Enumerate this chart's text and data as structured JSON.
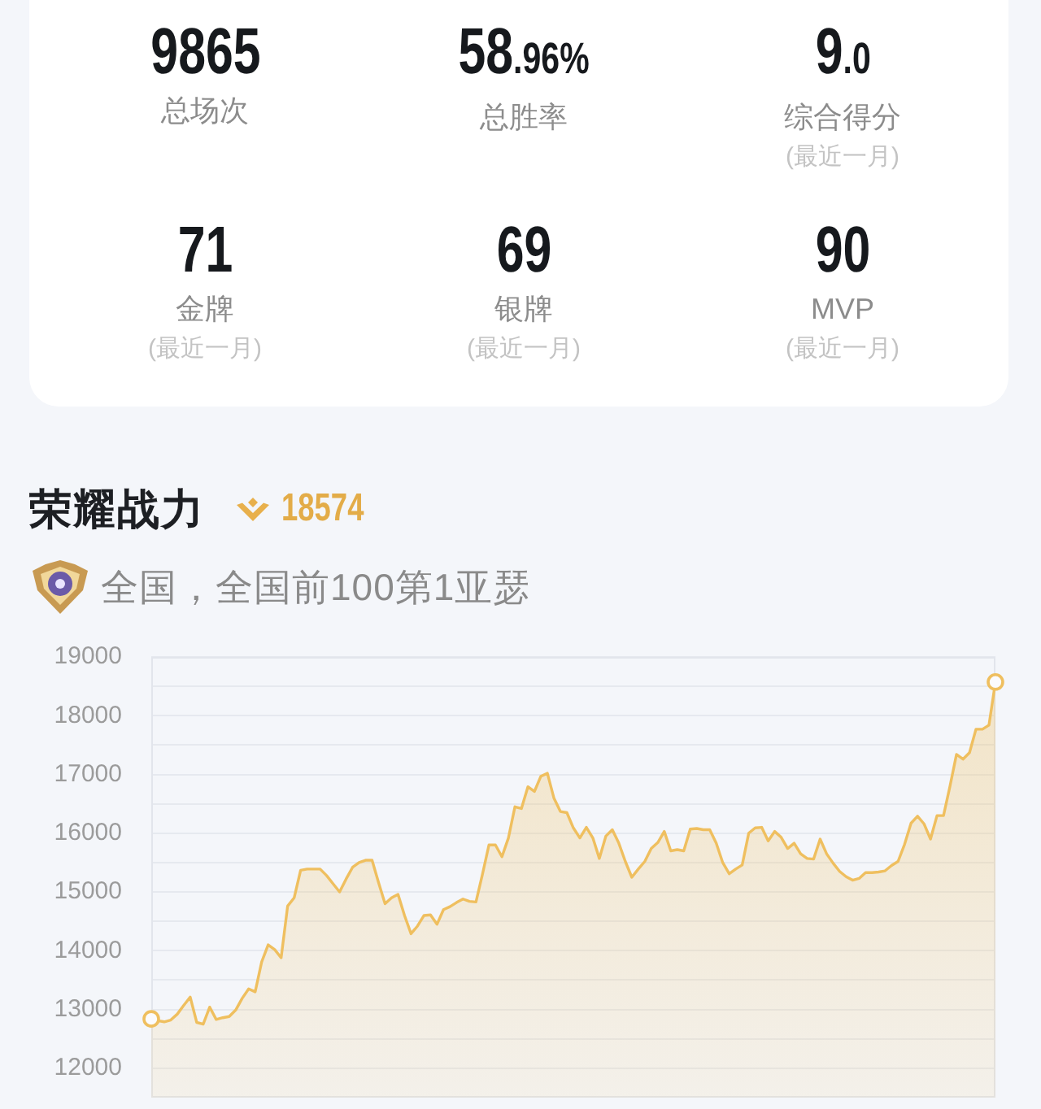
{
  "chart_data": [
    {
      "type": "other",
      "categories": [
        "总场次",
        "总胜率",
        "综合得分",
        "金牌",
        "银牌",
        "MVP"
      ],
      "value_labels": [
        "9865",
        "58.96%",
        "9.0",
        "71",
        "69",
        "90"
      ],
      "annotations": [
        {
          "text": "(最近一月)",
          "x": "综合得分"
        },
        {
          "text": "(最近一月)",
          "x": "金牌"
        },
        {
          "text": "(最近一月)",
          "x": "银牌"
        },
        {
          "text": "(最近一月)",
          "x": "MVP"
        }
      ]
    },
    {
      "type": "area",
      "title": "荣耀战力",
      "subtitle": "全国，全国前100第1亚瑟",
      "annotations": [
        "18574"
      ],
      "categories": [
        null,
        null,
        null,
        null,
        null,
        null,
        null,
        null,
        null,
        null,
        null,
        null,
        null,
        null,
        null,
        null,
        null,
        null,
        null,
        null,
        null,
        null,
        null,
        null,
        null,
        null,
        null,
        null,
        null,
        null,
        null,
        null,
        null,
        null,
        null,
        null,
        null,
        null,
        null,
        null,
        null,
        null,
        null,
        null,
        null,
        null,
        null,
        null,
        null,
        null,
        null,
        null,
        null,
        null,
        null,
        null,
        null,
        null,
        null,
        null,
        null,
        null,
        null,
        null,
        null,
        null,
        null,
        null,
        null,
        null,
        null,
        null,
        null,
        null,
        null,
        null,
        null,
        null,
        null,
        null,
        null,
        null,
        null,
        null,
        null,
        null,
        null,
        null,
        null,
        null,
        null,
        null,
        null,
        null,
        null,
        null,
        null,
        null,
        null,
        null,
        null,
        null,
        null,
        null,
        null,
        null,
        null,
        null,
        null,
        null,
        null,
        null,
        null,
        null,
        null,
        null,
        null,
        null,
        null,
        null,
        null,
        null,
        null,
        null,
        null,
        null,
        null,
        null,
        null,
        null,
        null
      ],
      "series": [
        {
          "color": "#efbf5f",
          "values": [
            12840,
            12810,
            12790,
            12820,
            12920,
            13070,
            13210,
            12780,
            12750,
            13040,
            12830,
            12860,
            12880,
            12990,
            13190,
            13350,
            13300,
            13810,
            14100,
            14020,
            13880,
            14760,
            14900,
            15370,
            15390,
            15390,
            15390,
            15280,
            15140,
            15000,
            15220,
            15420,
            15500,
            15540,
            15540,
            15160,
            14800,
            14900,
            14960,
            14600,
            14290,
            14420,
            14600,
            14610,
            14450,
            14700,
            14750,
            14820,
            14880,
            14840,
            14830,
            15300,
            15800,
            15800,
            15600,
            15920,
            16450,
            16420,
            16790,
            16710,
            16970,
            17020,
            16600,
            16370,
            16350,
            16090,
            15920,
            16100,
            15920,
            15570,
            15950,
            16060,
            15830,
            15520,
            15250,
            15390,
            15520,
            15740,
            15840,
            16030,
            15700,
            15720,
            15700,
            16070,
            16080,
            16060,
            16060,
            15830,
            15500,
            15310,
            15390,
            15460,
            16000,
            16090,
            16100,
            15870,
            16030,
            15930,
            15740,
            15830,
            15650,
            15570,
            15560,
            15900,
            15650,
            15490,
            15350,
            15260,
            15200,
            15230,
            15330,
            15330,
            15340,
            15360,
            15450,
            15520,
            15810,
            16170,
            16290,
            16160,
            15900,
            16300,
            16300,
            16800,
            17340,
            17260,
            17370,
            17770,
            17770,
            17840,
            18574
          ]
        },
        {
          "type": "scatter",
          "color": "#efbf5f",
          "values": [
            12840,
            null,
            null,
            null,
            null,
            null,
            null,
            null,
            null,
            null,
            null,
            null,
            null,
            null,
            null,
            null,
            null,
            null,
            null,
            null,
            null,
            null,
            null,
            null,
            null,
            null,
            null,
            null,
            null,
            null,
            null,
            null,
            null,
            null,
            null,
            null,
            null,
            null,
            null,
            null,
            null,
            null,
            null,
            null,
            null,
            null,
            null,
            null,
            null,
            null,
            null,
            null,
            null,
            null,
            null,
            null,
            null,
            null,
            null,
            null,
            null,
            null,
            null,
            null,
            null,
            null,
            null,
            null,
            null,
            null,
            null,
            null,
            null,
            null,
            null,
            null,
            null,
            null,
            null,
            null,
            null,
            null,
            null,
            null,
            null,
            null,
            null,
            null,
            null,
            null,
            null,
            null,
            null,
            null,
            null,
            null,
            null,
            null,
            null,
            null,
            null,
            null,
            null,
            null,
            null,
            null,
            null,
            null,
            null,
            null,
            null,
            null,
            null,
            null,
            null,
            null,
            null,
            null,
            null,
            null,
            null,
            null,
            null,
            null,
            null,
            null,
            null,
            null,
            null,
            null,
            18574
          ]
        }
      ],
      "ylim": [
        11500,
        19000
      ],
      "yticks": [
        12000,
        {
          "value": 12500,
          "label": null
        },
        13000,
        {
          "value": 13500,
          "label": null
        },
        14000,
        {
          "value": 14500,
          "label": null
        },
        15000,
        {
          "value": 15500,
          "label": null
        },
        16000,
        {
          "value": 16500,
          "label": null
        },
        17000,
        {
          "value": 17500,
          "label": null
        },
        18000,
        {
          "value": 18500,
          "label": null
        },
        19000
      ],
      "grid": "y",
      "tick_labels": "y"
    }
  ]
}
